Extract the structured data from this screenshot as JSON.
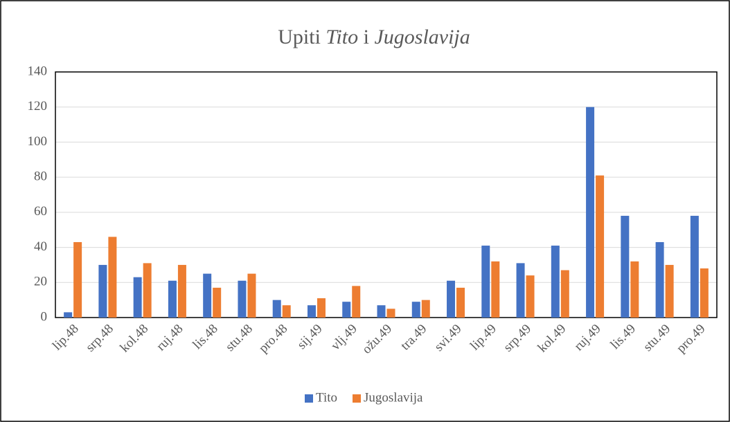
{
  "chart_data": {
    "type": "bar",
    "title": [
      "Upiti",
      "Tito",
      "i",
      "Jugoslavija"
    ],
    "categories": [
      "lip.48",
      "srp.48",
      "kol.48",
      "ruj.48",
      "lis.48",
      "stu.48",
      "pro.48",
      "sij.49",
      "vlj.49",
      "ožu.49",
      "tra.49",
      "svi.49",
      "lip.49",
      "srp.49",
      "kol.49",
      "ruj.49",
      "lis.49",
      "stu.49",
      "pro.49"
    ],
    "series": [
      {
        "name": "Tito",
        "color": "#4472c4",
        "values": [
          3,
          30,
          23,
          21,
          25,
          21,
          10,
          7,
          9,
          7,
          9,
          21,
          41,
          31,
          41,
          120,
          58,
          43,
          58
        ]
      },
      {
        "name": "Jugoslavija",
        "color": "#ed7d31",
        "values": [
          43,
          46,
          31,
          30,
          17,
          25,
          7,
          11,
          18,
          5,
          10,
          17,
          32,
          24,
          27,
          81,
          32,
          30,
          28
        ]
      }
    ],
    "ylim": [
      0,
      140
    ],
    "yticks": [
      0,
      20,
      40,
      60,
      80,
      100,
      120,
      140
    ],
    "grid": true,
    "legend": "bottom"
  }
}
